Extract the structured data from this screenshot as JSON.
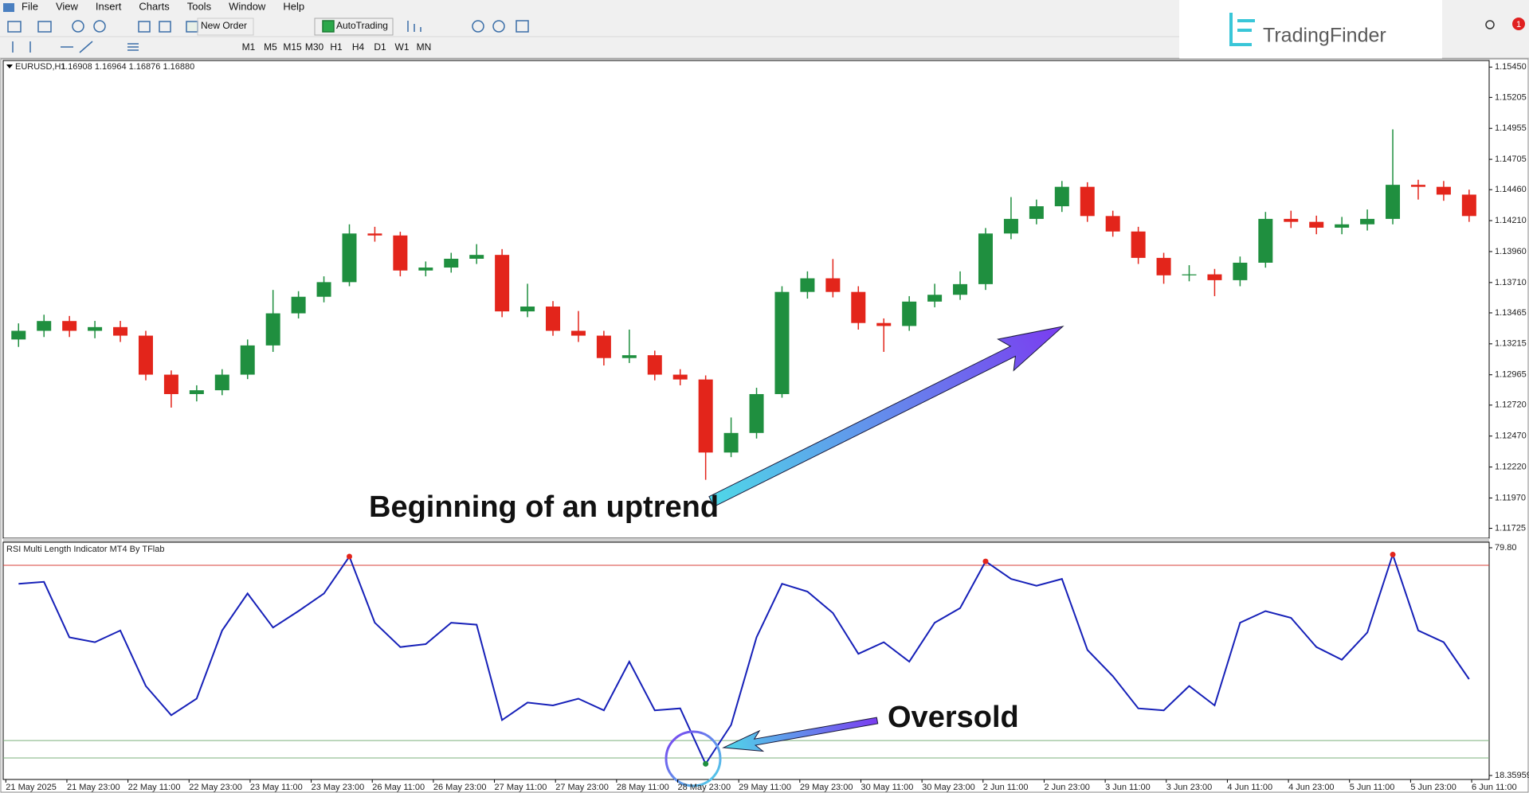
{
  "menu": [
    "File",
    "View",
    "Insert",
    "Charts",
    "Tools",
    "Window",
    "Help"
  ],
  "toolbar": {
    "new_order": "New Order",
    "auto_trading": "AutoTrading",
    "timeframes": [
      "M1",
      "M5",
      "M15",
      "M30",
      "H1",
      "H4",
      "D1",
      "W1",
      "MN"
    ]
  },
  "logo": "TradingFinder",
  "notification_count": 1,
  "chart": {
    "symbol": "EURUSD,H1",
    "quote": "1.16908 1.16964 1.16876 1.16880",
    "open": [
      1.1325,
      1.1332,
      1.13399,
      1.1332,
      1.1335,
      1.13281,
      1.12966,
      1.12809,
      1.1284,
      1.12966,
      1.13202,
      1.13461,
      1.13595,
      1.13713,
      1.14106,
      1.1409,
      1.13807,
      1.13831,
      1.13902,
      1.13933,
      1.13477,
      1.13516,
      1.1332,
      1.13281,
      1.131,
      1.13123,
      1.12966,
      1.12927,
      1.12337,
      1.12495,
      1.12809,
      1.13634,
      1.13744,
      1.13634,
      1.13383,
      1.13359,
      1.13556,
      1.13611,
      1.13697,
      1.14106,
      1.14224,
      1.14326,
      1.14483,
      1.14247,
      1.14122,
      1.13909,
      1.13768,
      1.13776,
      1.13729,
      1.1387,
      1.14224,
      1.142,
      1.14153,
      1.1418,
      1.14224,
      1.14499,
      1.14483,
      1.1442
    ],
    "high": [
      1.1338,
      1.1345,
      1.1344,
      1.134,
      1.134,
      1.1332,
      1.13,
      1.1288,
      1.1301,
      1.1325,
      1.1365,
      1.1364,
      1.1376,
      1.1418,
      1.1416,
      1.1412,
      1.1388,
      1.1395,
      1.1402,
      1.1398,
      1.137,
      1.1356,
      1.1348,
      1.1332,
      1.1333,
      1.1316,
      1.1301,
      1.1296,
      1.1262,
      1.1286,
      1.1368,
      1.138,
      1.139,
      1.1368,
      1.1342,
      1.136,
      1.137,
      1.138,
      1.1415,
      1.144,
      1.1438,
      1.1453,
      1.1452,
      1.1429,
      1.1416,
      1.1395,
      1.1385,
      1.1382,
      1.1392,
      1.1428,
      1.1429,
      1.1425,
      1.1424,
      1.143,
      1.14947,
      1.1454,
      1.1453,
      1.1446
    ],
    "low": [
      1.1319,
      1.1327,
      1.1327,
      1.1326,
      1.1323,
      1.1292,
      1.127,
      1.1275,
      1.128,
      1.1293,
      1.1315,
      1.1342,
      1.1355,
      1.1368,
      1.1404,
      1.1376,
      1.1376,
      1.1379,
      1.1386,
      1.1343,
      1.1343,
      1.1328,
      1.1323,
      1.1304,
      1.1306,
      1.1292,
      1.1288,
      1.12117,
      1.123,
      1.1245,
      1.1278,
      1.1358,
      1.1359,
      1.1333,
      1.1315,
      1.1332,
      1.1351,
      1.1357,
      1.1365,
      1.1406,
      1.1418,
      1.1428,
      1.142,
      1.1408,
      1.1386,
      1.137,
      1.1372,
      1.136,
      1.1368,
      1.1383,
      1.1415,
      1.141,
      1.141,
      1.1413,
      1.1418,
      1.1438,
      1.1437,
      1.142
    ],
    "close": [
      1.1332,
      1.13399,
      1.1332,
      1.1335,
      1.13281,
      1.12966,
      1.12809,
      1.1284,
      1.12966,
      1.13202,
      1.13461,
      1.13595,
      1.13713,
      1.14106,
      1.1409,
      1.13807,
      1.13831,
      1.13902,
      1.13933,
      1.13477,
      1.13516,
      1.1332,
      1.13281,
      1.131,
      1.13123,
      1.12966,
      1.12927,
      1.12337,
      1.12495,
      1.12809,
      1.13634,
      1.13744,
      1.13634,
      1.13383,
      1.13359,
      1.13556,
      1.13611,
      1.13697,
      1.14106,
      1.14224,
      1.14326,
      1.14483,
      1.14247,
      1.14122,
      1.13909,
      1.13768,
      1.13776,
      1.13729,
      1.1387,
      1.14224,
      1.142,
      1.14153,
      1.1418,
      1.14224,
      1.14499,
      1.14483,
      1.1442,
      1.14247
    ],
    "ylim": [
      1.11645,
      1.15503
    ],
    "yticks": [
      {
        "value": 1.1545,
        "label": "1.15450"
      },
      1.15205,
      1.14955,
      1.14705,
      {
        "value": 1.1446,
        "label": "1.14460"
      },
      {
        "value": 1.1421,
        "label": "1.14210"
      },
      {
        "value": 1.1396,
        "label": "1.13960"
      },
      {
        "value": 1.1371,
        "label": "1.13710"
      },
      1.13465,
      1.13215,
      1.12965,
      {
        "value": 1.1272,
        "label": "1.12720"
      },
      {
        "value": 1.1247,
        "label": "1.12470"
      },
      {
        "value": 1.1222,
        "label": "1.12220"
      },
      {
        "value": 1.1197,
        "label": "1.11970"
      },
      1.11725
    ],
    "up_color": "#1f8f3f",
    "down_color": "#e3251b"
  },
  "time_labels": [
    "21 May 2025",
    "21 May 23:00",
    "22 May 11:00",
    "22 May 23:00",
    "23 May 11:00",
    "23 May 23:00",
    "26 May 11:00",
    "26 May 23:00",
    "27 May 11:00",
    "27 May 23:00",
    "28 May 11:00",
    "28 May 23:00",
    "29 May 11:00",
    "29 May 23:00",
    "30 May 11:00",
    "30 May 23:00",
    "2 Jun 11:00",
    "2 Jun 23:00",
    "3 Jun 11:00",
    "3 Jun 23:00",
    "4 Jun 11:00",
    "4 Jun 23:00",
    "5 Jun 11:00",
    "5 Jun 23:00",
    "6 Jun 11:00"
  ],
  "indicator": {
    "title": "RSI Multi Length Indicator MT4 By TFlab",
    "values": [
      70.08,
      70.61,
      55.64,
      54.33,
      57.48,
      42.51,
      34.63,
      39.1,
      57.48,
      67.46,
      58.27,
      62.73,
      67.46,
      77.44,
      59.58,
      53.01,
      53.8,
      59.58,
      59.05,
      33.32,
      38.05,
      37.26,
      39.1,
      35.94,
      49.08,
      35.94,
      36.47,
      21.5,
      32.01,
      55.64,
      70.08,
      67.98,
      62.21,
      51.18,
      54.33,
      49.08,
      59.58,
      63.52,
      76.12,
      71.4,
      69.56,
      71.4,
      52.23,
      45.14,
      36.47,
      35.94,
      42.51,
      37.26,
      59.58,
      62.73,
      60.89,
      53.01,
      49.6,
      56.95,
      77.96,
      57.48,
      54.33,
      44.35
    ],
    "color": "#1620b8",
    "ylim": [
      17.29,
      81.3
    ],
    "yticks": [
      {
        "value": 79.8,
        "label": "79.80"
      },
      18.35959
    ],
    "levels": [
      {
        "value": 75.07,
        "color": "#d9403a"
      },
      {
        "value": 27.8,
        "color": "#7cb07c"
      },
      {
        "value": 23.08,
        "color": "#7cb07c"
      }
    ],
    "signal_high_color": "#e3251b",
    "signal_low_color": "#1f8f3f"
  },
  "annotations": {
    "uptrend": "Beginning of an uptrend",
    "oversold": "Oversold"
  }
}
